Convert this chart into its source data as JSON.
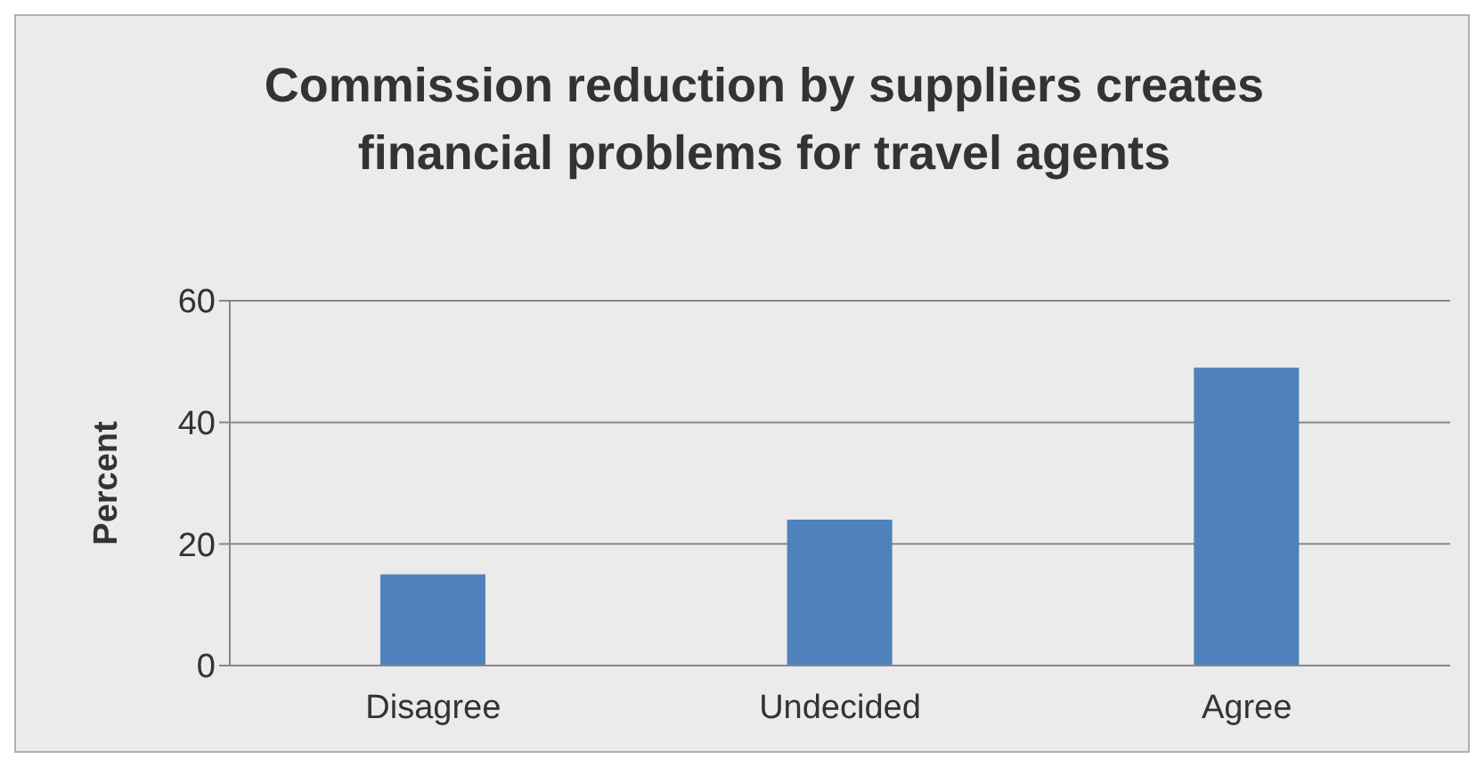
{
  "chart_data": {
    "type": "bar",
    "title": "Commission reduction by suppliers creates financial problems for travel agents",
    "ylabel": "Percent",
    "categories": [
      "Disagree",
      "Undecided",
      "Agree"
    ],
    "values": [
      15,
      24,
      49
    ],
    "color": "#4f81bd",
    "ylim": [
      0,
      60
    ],
    "yticks": [
      0,
      20,
      40,
      60
    ],
    "grid": "y"
  }
}
